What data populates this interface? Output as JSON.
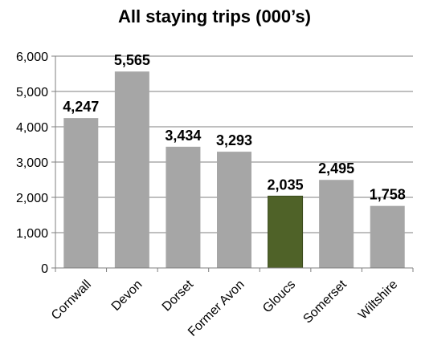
{
  "chart_data": {
    "type": "bar",
    "title": "All staying trips (000’s)",
    "xlabel": "",
    "ylabel": "",
    "categories": [
      "Cornwall",
      "Devon",
      "Dorset",
      "Former Avon",
      "Gloucs",
      "Somerset",
      "Wiltshire"
    ],
    "values": [
      4247,
      5565,
      3434,
      3293,
      2035,
      2495,
      1758
    ],
    "data_labels": [
      "4,247",
      "5,565",
      "3,434",
      "3,293",
      "2,035",
      "2,495",
      "1,758"
    ],
    "yticks": [
      "0",
      "1,000",
      "2,000",
      "3,000",
      "4,000",
      "5,000",
      "6,000"
    ],
    "ylim": [
      0,
      6000
    ],
    "grid": true,
    "legend": "none",
    "colors": {
      "bar": "#a6a6a6",
      "highlight": "#4f6228",
      "highlight_border": "#3a4a1c",
      "grid": "#7f7f7f",
      "axis": "#7f7f7f"
    },
    "highlight_category": "Gloucs"
  }
}
